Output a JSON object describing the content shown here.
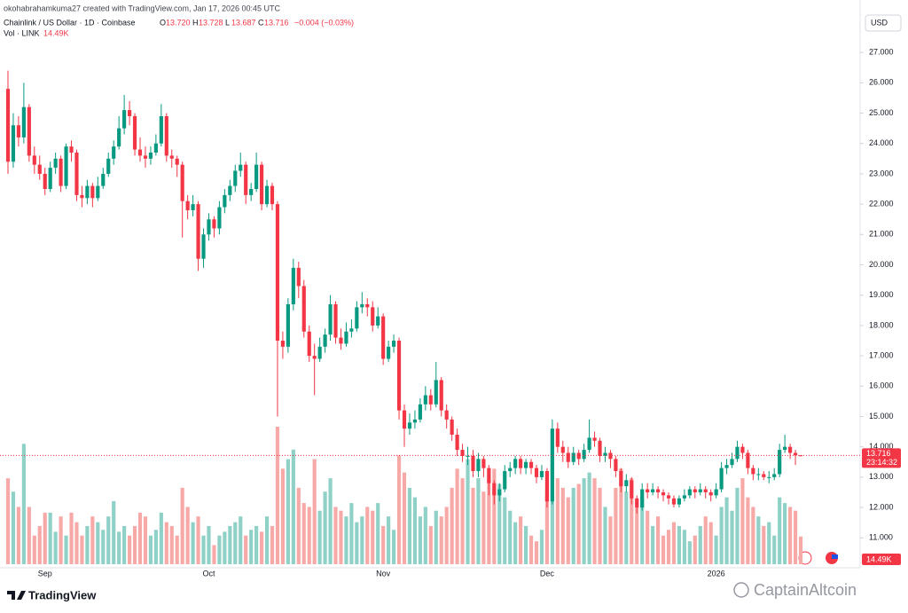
{
  "header": {
    "credit": "okohabrahamkuma27 created with TradingView.com, Jan 17, 2026 00:45 UTC",
    "symbol": "Chainlink / US Dollar · 1D · Coinbase",
    "ohlc": [
      {
        "key": "O",
        "value": "13.720"
      },
      {
        "key": "H",
        "value": "13.728"
      },
      {
        "key": "L",
        "value": "13.687"
      },
      {
        "key": "C",
        "value": "13.716"
      }
    ],
    "change": "−0.004 (−0.03%)",
    "volume_title": "Vol · LINK"
  },
  "footer": {
    "brand": "TradingView",
    "watermark": "CaptainAltcoin"
  },
  "chart_data": {
    "type": "candlestick",
    "currency": "USD",
    "countdown": "23:14:32",
    "colors": {
      "up": "#089981",
      "down": "#f23645",
      "up_volume": "#8fd1c7",
      "down_volume": "#f7a9a7"
    },
    "ylim": [
      10.13,
      28.73
    ],
    "yticks": [
      {
        "value": 11,
        "label": "11.000"
      },
      {
        "value": 12,
        "label": "12.000"
      },
      {
        "value": 13,
        "label": "13.000"
      },
      {
        "value": 14,
        "label": "14.000"
      },
      {
        "value": 15,
        "label": "15.000"
      },
      {
        "value": 16,
        "label": "16.000"
      },
      {
        "value": 17,
        "label": "17.000"
      },
      {
        "value": 18,
        "label": "18.000"
      },
      {
        "value": 19,
        "label": "19.000"
      },
      {
        "value": 20,
        "label": "20.000"
      },
      {
        "value": 21,
        "label": "21.000"
      },
      {
        "value": 22,
        "label": "22.000"
      },
      {
        "value": 23,
        "label": "23.000"
      },
      {
        "value": 24,
        "label": "24.000"
      },
      {
        "value": 25,
        "label": "25.000"
      },
      {
        "value": 26,
        "label": "26.000"
      },
      {
        "value": 27,
        "label": "27.000"
      }
    ],
    "categories": [
      null,
      null,
      null,
      null,
      null,
      null,
      null,
      "Sep",
      null,
      null,
      null,
      null,
      null,
      null,
      null,
      null,
      null,
      null,
      null,
      null,
      null,
      null,
      null,
      null,
      null,
      null,
      null,
      null,
      null,
      null,
      null,
      null,
      null,
      null,
      null,
      null,
      null,
      null,
      "Oct",
      null,
      null,
      null,
      null,
      null,
      null,
      null,
      null,
      null,
      null,
      null,
      null,
      null,
      null,
      null,
      null,
      null,
      null,
      null,
      null,
      null,
      null,
      null,
      null,
      null,
      null,
      null,
      null,
      null,
      null,
      null,
      null,
      "Nov",
      null,
      null,
      null,
      null,
      null,
      null,
      null,
      null,
      null,
      null,
      null,
      null,
      null,
      null,
      null,
      null,
      null,
      null,
      null,
      null,
      null,
      null,
      null,
      null,
      null,
      null,
      null,
      null,
      null,
      null,
      "Dec",
      null,
      null,
      null,
      null,
      null,
      null,
      null,
      null,
      null,
      null,
      null,
      null,
      null,
      null,
      null,
      null,
      null,
      null,
      null,
      null,
      null,
      null,
      null,
      null,
      null,
      null,
      null,
      null,
      null,
      null,
      null,
      "2026",
      null,
      null,
      null,
      null,
      null,
      null,
      null,
      null,
      null,
      null,
      null,
      null,
      null,
      null,
      null,
      null
    ],
    "open": [
      25.8,
      23.4,
      24.6,
      24.2,
      25.2,
      23.6,
      23.3,
      23.0,
      22.5,
      23.2,
      23.5,
      22.6,
      23.9,
      23.7,
      22.3,
      22.2,
      22.6,
      22.2,
      22.6,
      23.0,
      23.5,
      23.9,
      24.5,
      25.1,
      24.9,
      23.8,
      23.6,
      23.5,
      23.7,
      24.0,
      24.9,
      23.6,
      23.5,
      23.3,
      22.1,
      21.8,
      22.0,
      20.2,
      21.0,
      21.5,
      21.2,
      21.9,
      22.3,
      22.6,
      23.1,
      23.3,
      22.3,
      22.5,
      23.3,
      22.0,
      22.6,
      22.0,
      17.5,
      17.3,
      18.7,
      19.9,
      19.3,
      17.8,
      17.0,
      16.9,
      17.3,
      17.7,
      18.7,
      17.6,
      17.4,
      17.8,
      17.9,
      18.6,
      18.7,
      18.6,
      18.0,
      18.3,
      16.9,
      17.3,
      17.5,
      15.2,
      14.6,
      14.8,
      14.9,
      15.4,
      15.7,
      15.4,
      16.2,
      15.2,
      14.9,
      14.4,
      13.9,
      13.7,
      13.7,
      13.2,
      13.6,
      13.3,
      12.8,
      12.4,
      12.6,
      13.2,
      13.3,
      13.6,
      13.3,
      13.5,
      13.3,
      13.0,
      13.2,
      12.2,
      14.6,
      14.0,
      13.8,
      13.5,
      13.8,
      13.6,
      13.9,
      14.3,
      14.2,
      13.7,
      13.8,
      13.6,
      13.2,
      12.7,
      12.9,
      12.3,
      12.0,
      12.6,
      12.5,
      12.6,
      12.5,
      12.4,
      12.3,
      12.1,
      12.3,
      12.4,
      12.6,
      12.5,
      12.6,
      12.5,
      12.4,
      12.6,
      13.3,
      13.4,
      13.6,
      14.0,
      13.8,
      13.3,
      13.1,
      13.1,
      13.0,
      13.0,
      13.1,
      13.9,
      14.0,
      13.8,
      13.72
    ],
    "high": [
      26.4,
      25.0,
      24.9,
      26.0,
      25.3,
      23.9,
      23.6,
      23.2,
      23.4,
      23.7,
      23.6,
      24.0,
      24.1,
      23.8,
      22.6,
      22.8,
      22.7,
      22.9,
      23.2,
      23.7,
      24.1,
      24.9,
      25.6,
      25.4,
      25.0,
      24.2,
      23.9,
      23.9,
      24.3,
      25.3,
      25.0,
      23.8,
      23.6,
      23.4,
      22.3,
      22.3,
      22.1,
      21.2,
      21.7,
      21.6,
      22.1,
      22.5,
      22.8,
      23.3,
      23.7,
      23.4,
      22.7,
      23.7,
      23.4,
      22.8,
      22.7,
      22.1,
      17.8,
      18.9,
      20.2,
      20.1,
      19.5,
      18.0,
      17.4,
      17.6,
      17.9,
      19.0,
      18.8,
      17.9,
      18.1,
      18.2,
      18.8,
      19.1,
      18.9,
      18.8,
      18.6,
      18.4,
      17.5,
      17.7,
      17.6,
      15.4,
      15.1,
      15.2,
      15.6,
      16.0,
      15.9,
      16.8,
      16.3,
      15.4,
      15.0,
      14.6,
      14.1,
      14.0,
      13.9,
      13.8,
      13.7,
      13.4,
      12.9,
      12.8,
      13.4,
      13.5,
      13.7,
      13.7,
      13.6,
      13.6,
      13.4,
      13.4,
      13.3,
      14.9,
      14.8,
      14.2,
      14.0,
      14.0,
      13.9,
      14.1,
      14.9,
      14.5,
      14.3,
      14.0,
      13.9,
      13.7,
      13.3,
      13.1,
      13.0,
      12.4,
      12.8,
      12.8,
      12.8,
      12.7,
      12.6,
      12.5,
      12.4,
      12.4,
      12.6,
      12.7,
      12.7,
      12.8,
      12.7,
      12.6,
      12.8,
      13.5,
      13.6,
      13.8,
      14.2,
      14.1,
      13.9,
      13.4,
      13.3,
      13.2,
      13.2,
      13.3,
      14.1,
      14.4,
      14.1,
      13.9,
      13.728
    ],
    "low": [
      23.0,
      23.2,
      23.9,
      24.0,
      23.4,
      23.0,
      22.8,
      22.3,
      22.4,
      23.0,
      22.4,
      22.5,
      23.4,
      22.1,
      21.9,
      22.0,
      21.9,
      22.1,
      22.5,
      22.9,
      23.3,
      23.8,
      24.3,
      24.6,
      23.6,
      23.4,
      23.2,
      23.3,
      23.6,
      23.9,
      23.4,
      23.2,
      22.9,
      20.9,
      21.5,
      21.6,
      19.8,
      19.9,
      20.8,
      20.9,
      21.0,
      21.7,
      22.1,
      22.4,
      22.9,
      22.0,
      22.1,
      22.4,
      21.8,
      21.9,
      21.8,
      15.0,
      16.9,
      17.1,
      18.5,
      18.9,
      17.6,
      16.8,
      15.7,
      16.8,
      17.1,
      17.5,
      17.4,
      17.2,
      17.3,
      17.6,
      17.8,
      18.4,
      18.3,
      17.8,
      17.9,
      16.7,
      16.8,
      17.1,
      14.9,
      14.0,
      14.4,
      14.6,
      14.8,
      15.2,
      15.2,
      15.3,
      15.0,
      14.6,
      14.2,
      13.7,
      13.5,
      13.4,
      13.0,
      13.0,
      13.0,
      12.4,
      12.1,
      12.2,
      12.5,
      13.0,
      13.1,
      13.1,
      13.1,
      13.1,
      12.8,
      12.9,
      12.0,
      12.1,
      13.8,
      13.5,
      13.3,
      13.4,
      13.4,
      13.5,
      13.8,
      14.0,
      13.5,
      13.5,
      13.3,
      13.0,
      12.5,
      12.5,
      12.1,
      11.8,
      11.9,
      12.3,
      12.4,
      12.3,
      12.2,
      12.1,
      12.0,
      12.0,
      12.2,
      12.3,
      12.3,
      12.4,
      12.3,
      12.2,
      12.3,
      12.5,
      13.1,
      13.3,
      13.5,
      13.6,
      13.1,
      12.9,
      12.9,
      12.9,
      12.8,
      12.9,
      13.0,
      13.8,
      13.6,
      13.4,
      13.687
    ],
    "close": [
      23.4,
      24.6,
      24.2,
      25.2,
      23.6,
      23.3,
      23.0,
      22.5,
      23.2,
      23.5,
      22.6,
      23.9,
      23.7,
      22.3,
      22.2,
      22.6,
      22.2,
      22.6,
      23.0,
      23.5,
      23.9,
      24.5,
      25.1,
      24.9,
      23.8,
      23.6,
      23.5,
      23.7,
      24.0,
      24.9,
      23.6,
      23.5,
      23.3,
      22.1,
      21.8,
      22.0,
      20.2,
      21.0,
      21.5,
      21.2,
      21.9,
      22.3,
      22.6,
      23.1,
      23.3,
      22.3,
      22.5,
      23.3,
      22.0,
      22.6,
      22.0,
      17.5,
      17.3,
      18.7,
      19.9,
      19.3,
      17.8,
      17.0,
      16.9,
      17.3,
      17.7,
      18.7,
      17.6,
      17.4,
      17.8,
      17.9,
      18.6,
      18.7,
      18.6,
      18.0,
      18.3,
      16.9,
      17.3,
      17.5,
      15.2,
      14.6,
      14.8,
      14.9,
      15.4,
      15.7,
      15.4,
      16.2,
      15.2,
      14.9,
      14.4,
      13.9,
      13.7,
      13.7,
      13.2,
      13.6,
      13.3,
      12.8,
      12.4,
      12.6,
      13.2,
      13.3,
      13.6,
      13.3,
      13.5,
      13.3,
      13.0,
      13.2,
      12.2,
      14.6,
      14.0,
      13.8,
      13.5,
      13.8,
      13.6,
      13.9,
      14.3,
      14.2,
      13.7,
      13.8,
      13.6,
      13.2,
      12.7,
      12.9,
      12.3,
      12.0,
      12.6,
      12.5,
      12.6,
      12.5,
      12.4,
      12.3,
      12.1,
      12.3,
      12.4,
      12.6,
      12.5,
      12.6,
      12.5,
      12.4,
      12.6,
      13.3,
      13.4,
      13.6,
      14.0,
      13.8,
      13.3,
      13.1,
      13.1,
      13.0,
      13.0,
      13.1,
      13.9,
      14.0,
      13.8,
      13.72,
      13.716
    ],
    "volume": {
      "last_label": "14.49K",
      "values": [
        45000,
        38000,
        30000,
        63000,
        30000,
        15000,
        20000,
        27000,
        27000,
        17000,
        25000,
        15000,
        27000,
        22000,
        15000,
        20000,
        25000,
        22000,
        18000,
        25000,
        33000,
        17000,
        20000,
        15000,
        20000,
        27000,
        25000,
        15000,
        18000,
        27000,
        22000,
        20000,
        15000,
        40000,
        30000,
        22000,
        25000,
        15000,
        20000,
        10000,
        15000,
        17000,
        20000,
        22000,
        25000,
        15000,
        18000,
        20000,
        17000,
        25000,
        20000,
        72000,
        50000,
        55000,
        60000,
        40000,
        32000,
        30000,
        55000,
        28000,
        38000,
        45000,
        30000,
        28000,
        25000,
        32000,
        22000,
        25000,
        30000,
        28000,
        32000,
        20000,
        25000,
        18000,
        57000,
        48000,
        40000,
        35000,
        25000,
        30000,
        20000,
        28000,
        25000,
        30000,
        40000,
        50000,
        45000,
        55000,
        40000,
        45000,
        38000,
        45000,
        50000,
        42000,
        35000,
        28000,
        22000,
        25000,
        20000,
        15000,
        12000,
        18000,
        40000,
        70000,
        45000,
        40000,
        35000,
        40000,
        42000,
        45000,
        48000,
        45000,
        40000,
        30000,
        25000,
        40000,
        50000,
        38000,
        45000,
        30000,
        35000,
        28000,
        20000,
        25000,
        15000,
        18000,
        22000,
        20000,
        18000,
        12000,
        15000,
        20000,
        25000,
        22000,
        15000,
        30000,
        35000,
        28000,
        40000,
        45000,
        35000,
        30000,
        25000,
        20000,
        22000,
        15000,
        35000,
        32000,
        30000,
        28000,
        14490
      ]
    }
  }
}
